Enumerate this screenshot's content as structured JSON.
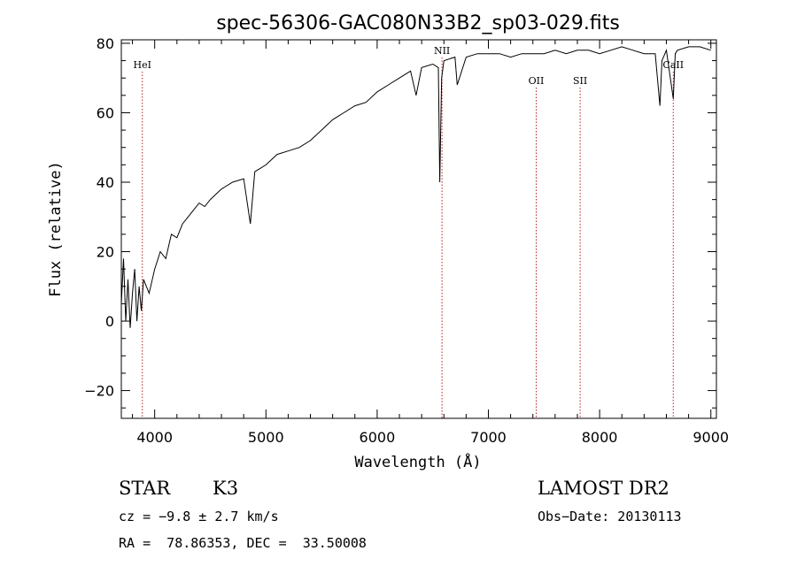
{
  "chart_data": {
    "type": "line",
    "title": "spec-56306-GAC080N33B2_sp03-029.fits",
    "xlabel": "Wavelength (Å)",
    "ylabel": "Flux (relative)",
    "xlim": [
      3700,
      9050
    ],
    "ylim": [
      -28,
      81
    ],
    "xticks": [
      4000,
      5000,
      6000,
      7000,
      8000,
      9000
    ],
    "yticks": [
      -20,
      0,
      20,
      40,
      60,
      80
    ],
    "grid": false,
    "line_color": "#000000",
    "marker_color": "#b22222",
    "series": [
      {
        "x": [
          3700,
          3720,
          3740,
          3760,
          3780,
          3800,
          3820,
          3840,
          3860,
          3880,
          3900,
          3950,
          4000,
          4050,
          4100,
          4150,
          4200,
          4250,
          4300,
          4350,
          4400,
          4450,
          4500,
          4600,
          4700,
          4800,
          4860,
          4900,
          5000,
          5100,
          5200,
          5300,
          5400,
          5500,
          5600,
          5700,
          5800,
          5900,
          6000,
          6100,
          6200,
          6300,
          6350,
          6400,
          6500,
          6550,
          6563,
          6580,
          6600,
          6700,
          6720,
          6800,
          6900,
          7000,
          7100,
          7200,
          7300,
          7400,
          7500,
          7600,
          7700,
          7800,
          7900,
          8000,
          8100,
          8200,
          8300,
          8400,
          8498,
          8500,
          8542,
          8560,
          8600,
          8662,
          8680,
          8700,
          8800,
          8900,
          9000
        ],
        "y": [
          5,
          18,
          0,
          12,
          -2,
          8,
          15,
          0,
          10,
          3,
          12,
          8,
          15,
          20,
          18,
          25,
          24,
          28,
          30,
          32,
          34,
          33,
          35,
          38,
          40,
          41,
          28,
          43,
          45,
          48,
          49,
          50,
          52,
          55,
          58,
          60,
          62,
          63,
          66,
          68,
          70,
          72,
          65,
          73,
          74,
          73,
          40,
          70,
          75,
          76,
          68,
          76,
          77,
          77,
          77,
          76,
          77,
          77,
          77,
          78,
          77,
          78,
          78,
          77,
          78,
          79,
          78,
          77,
          77,
          77,
          62,
          75,
          78,
          64,
          77,
          78,
          79,
          79,
          78
        ]
      }
    ],
    "annotations": [
      {
        "label": "HeI",
        "x": 3889
      },
      {
        "label": "NII",
        "x": 6583
      },
      {
        "label": "OII",
        "x": 7430
      },
      {
        "label": "SII",
        "x": 7825
      },
      {
        "label": "CaII",
        "x": 8662
      }
    ]
  },
  "info": {
    "class": "STAR",
    "subclass": "K3",
    "redshift": "cz = −9.8 ± 2.7 km/s",
    "coords": "RA =  78.86353, DEC =  33.50008",
    "survey": "LAMOST DR2",
    "obs_date": "Obs−Date: 20130113"
  }
}
